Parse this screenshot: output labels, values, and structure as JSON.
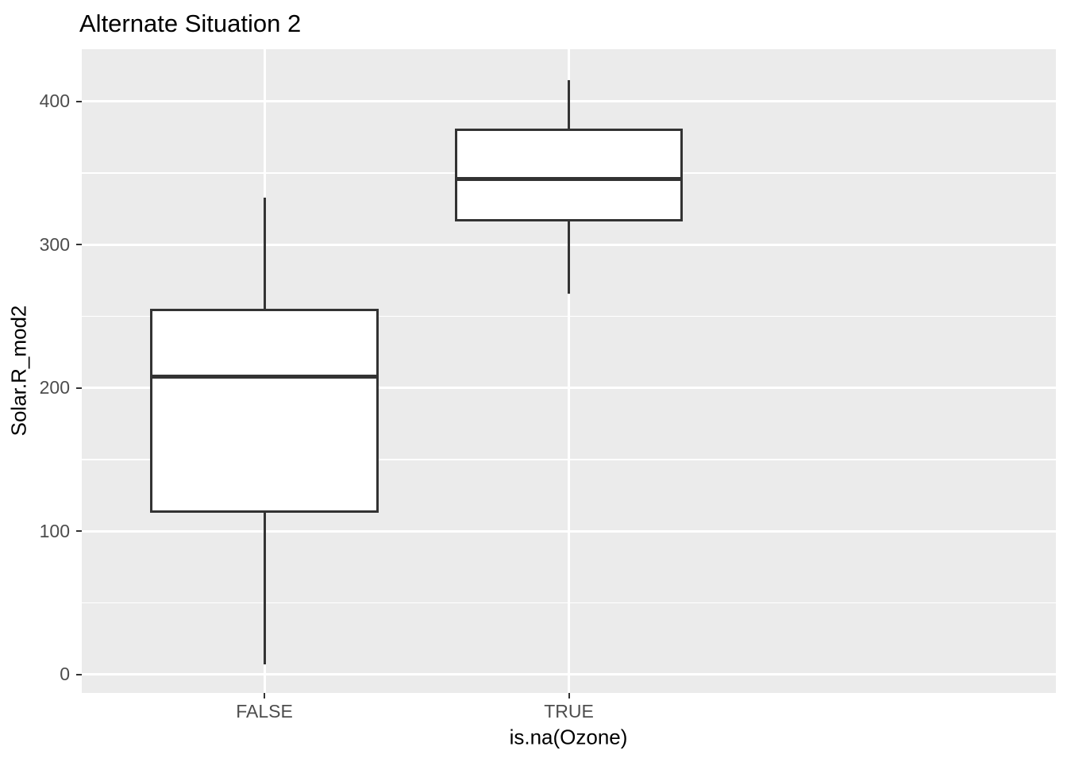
{
  "page": {
    "background": "#FFFFFF"
  },
  "chart_data": {
    "type": "boxplot",
    "title": "Alternate Situation 2",
    "xlabel": "is.na(Ozone)",
    "ylabel": "Solar.R_mod2",
    "categories": [
      "FALSE",
      "TRUE"
    ],
    "series": [
      {
        "category": "FALSE",
        "whisker_low": 7,
        "q1": 113,
        "median": 208,
        "q3": 255,
        "whisker_high": 333
      },
      {
        "category": "TRUE",
        "whisker_low": 266,
        "q1": 316,
        "median": 346,
        "q3": 381,
        "whisker_high": 415
      }
    ],
    "y_major_ticks": [
      0,
      100,
      200,
      300,
      400
    ],
    "y_minor_gridlines": [
      50,
      150,
      250,
      350
    ],
    "ylim": [
      -13,
      436.5
    ],
    "grid": "white major and minor horizontal lines, white vertical line at each category",
    "legend_position": "none",
    "style": {
      "panel_bg": "#EBEBEB",
      "gridline_color": "#FFFFFF",
      "box_fill": "#FFFFFF",
      "box_border_color": "#333333",
      "median_color": "#333333",
      "tick_color": "#333333",
      "tick_label_color": "#4D4D4D",
      "title_color": "#000000",
      "axis_title_color": "#000000"
    }
  }
}
